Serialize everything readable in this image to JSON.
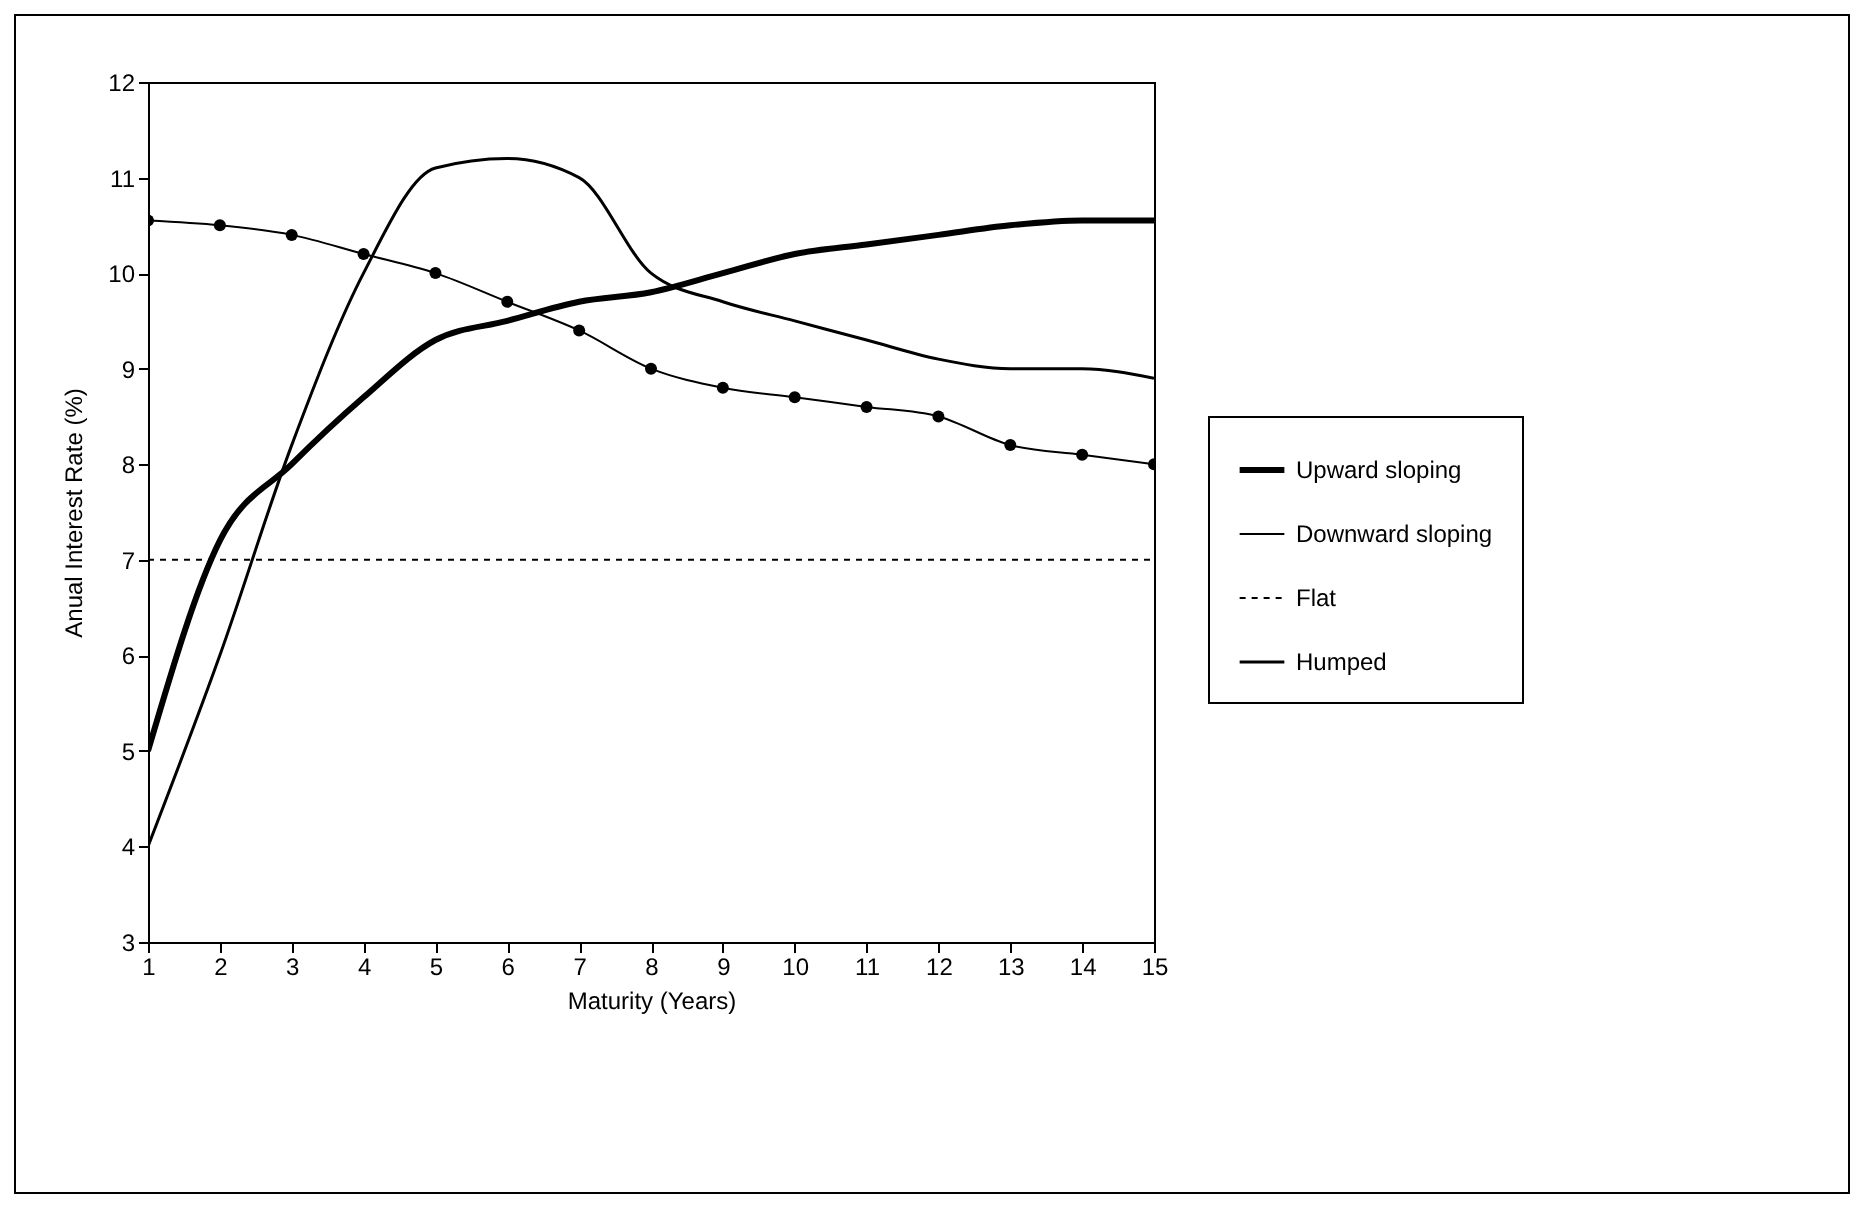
{
  "chart_data": {
    "type": "line",
    "xlabel": "Maturity (Years)",
    "ylabel": "Anual Interest Rate (%)",
    "x": [
      1,
      2,
      3,
      4,
      5,
      6,
      7,
      8,
      9,
      10,
      11,
      12,
      13,
      14,
      15
    ],
    "xlim": [
      1,
      15
    ],
    "xticks": [
      1,
      2,
      3,
      4,
      5,
      6,
      7,
      8,
      9,
      10,
      11,
      12,
      13,
      14,
      15
    ],
    "ylim": [
      3,
      12
    ],
    "yticks": [
      3,
      4,
      5,
      6,
      7,
      8,
      9,
      10,
      11,
      12
    ],
    "grid": false,
    "legend": "right",
    "series": [
      {
        "name": "Upward sloping",
        "color": "#000000",
        "line_style": "solid",
        "values": [
          5,
          7.2,
          8,
          8.7,
          9.3,
          9.5,
          9.7,
          9.8,
          10,
          10.2,
          10.3,
          10.4,
          10.5,
          10.55,
          10.55
        ]
      },
      {
        "name": "Downward sloping",
        "color": "#000000",
        "line_style": "solid",
        "marker": "circle",
        "values": [
          10.55,
          10.5,
          10.4,
          10.2,
          10,
          9.7,
          9.4,
          9,
          8.8,
          8.7,
          8.6,
          8.5,
          8.2,
          8.1,
          8
        ]
      },
      {
        "name": "Flat",
        "color": "#000000",
        "line_style": "dashed",
        "values": [
          7,
          7,
          7,
          7,
          7,
          7,
          7,
          7,
          7,
          7,
          7,
          7,
          7,
          7,
          7
        ]
      },
      {
        "name": "Humped",
        "color": "#000000",
        "line_style": "solid",
        "values": [
          4,
          6,
          8.2,
          10,
          11.1,
          11.2,
          11,
          10,
          9.7,
          9.5,
          9.3,
          9.1,
          9,
          9,
          8.9
        ]
      }
    ]
  }
}
